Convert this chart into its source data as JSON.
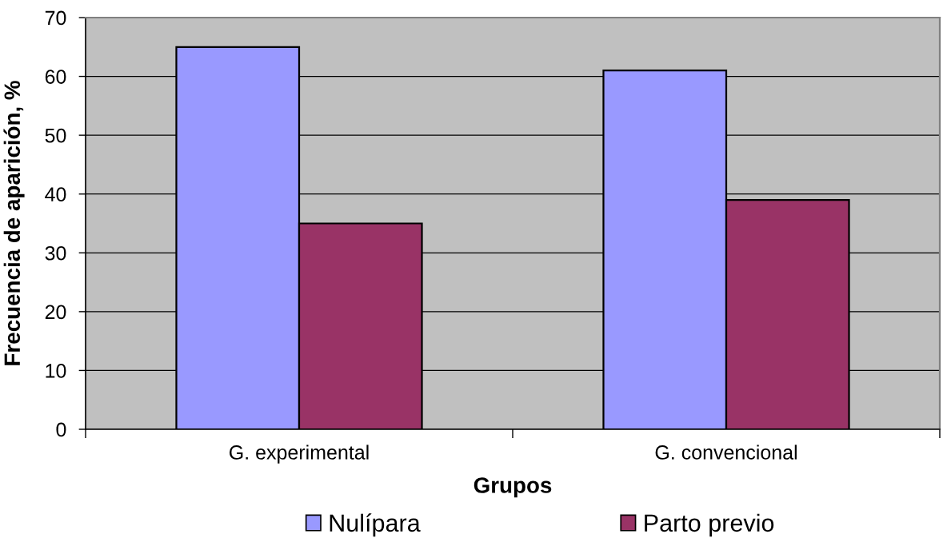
{
  "chart_data": {
    "type": "bar",
    "xlabel": "Grupos",
    "ylabel": "Frecuencia de aparición, %",
    "categories": [
      "G. experimental",
      "G. convencional"
    ],
    "series": [
      {
        "name": "Nulípara",
        "color": "#9999ff",
        "values": [
          65,
          61
        ]
      },
      {
        "name": "Parto previo",
        "color": "#993366",
        "values": [
          35,
          39
        ]
      }
    ],
    "ylim": [
      0,
      70
    ],
    "yticks": [
      0,
      10,
      20,
      30,
      40,
      50,
      60,
      70
    ],
    "grid": "y",
    "legend": "bottom"
  }
}
